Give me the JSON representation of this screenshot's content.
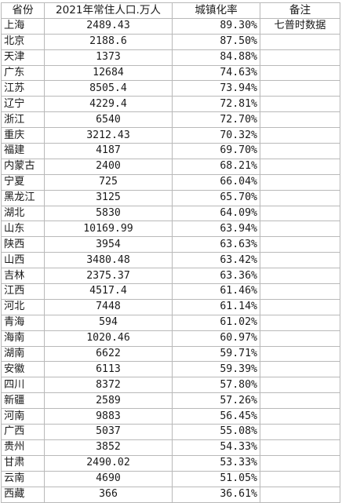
{
  "table": {
    "headers": {
      "province": "省份",
      "population": "2021年常住人口.万人",
      "rate": "城镇化率",
      "note": "备注"
    },
    "note_text": "七普时数据",
    "rows": [
      {
        "province": "上海",
        "population": "2489.43",
        "rate": "89.30%"
      },
      {
        "province": "北京",
        "population": "2188.6",
        "rate": "87.50%"
      },
      {
        "province": "天津",
        "population": "1373",
        "rate": "84.88%"
      },
      {
        "province": "广东",
        "population": "12684",
        "rate": "74.63%"
      },
      {
        "province": "江苏",
        "population": "8505.4",
        "rate": "73.94%"
      },
      {
        "province": "辽宁",
        "population": "4229.4",
        "rate": "72.81%"
      },
      {
        "province": "浙江",
        "population": "6540",
        "rate": "72.70%"
      },
      {
        "province": "重庆",
        "population": "3212.43",
        "rate": "70.32%"
      },
      {
        "province": "福建",
        "population": "4187",
        "rate": "69.70%"
      },
      {
        "province": "内蒙古",
        "population": "2400",
        "rate": "68.21%"
      },
      {
        "province": "宁夏",
        "population": "725",
        "rate": "66.04%"
      },
      {
        "province": "黑龙江",
        "population": "3125",
        "rate": "65.70%"
      },
      {
        "province": "湖北",
        "population": "5830",
        "rate": "64.09%"
      },
      {
        "province": "山东",
        "population": "10169.99",
        "rate": "63.94%"
      },
      {
        "province": "陕西",
        "population": "3954",
        "rate": "63.63%"
      },
      {
        "province": "山西",
        "population": "3480.48",
        "rate": "63.42%"
      },
      {
        "province": "吉林",
        "population": "2375.37",
        "rate": "63.36%"
      },
      {
        "province": "江西",
        "population": "4517.4",
        "rate": "61.46%"
      },
      {
        "province": "河北",
        "population": "7448",
        "rate": "61.14%"
      },
      {
        "province": "青海",
        "population": "594",
        "rate": "61.02%"
      },
      {
        "province": "海南",
        "population": "1020.46",
        "rate": "60.97%"
      },
      {
        "province": "湖南",
        "population": "6622",
        "rate": "59.71%"
      },
      {
        "province": "安徽",
        "population": "6113",
        "rate": "59.39%"
      },
      {
        "province": "四川",
        "population": "8372",
        "rate": "57.80%"
      },
      {
        "province": "新疆",
        "population": "2589",
        "rate": "57.26%"
      },
      {
        "province": "河南",
        "population": "9883",
        "rate": "56.45%"
      },
      {
        "province": "广西",
        "population": "5037",
        "rate": "55.08%"
      },
      {
        "province": "贵州",
        "population": "3852",
        "rate": "54.33%"
      },
      {
        "province": "甘肃",
        "population": "2490.02",
        "rate": "53.33%"
      },
      {
        "province": "云南",
        "population": "4690",
        "rate": "51.05%"
      },
      {
        "province": "西藏",
        "population": "366",
        "rate": "36.61%"
      }
    ]
  }
}
